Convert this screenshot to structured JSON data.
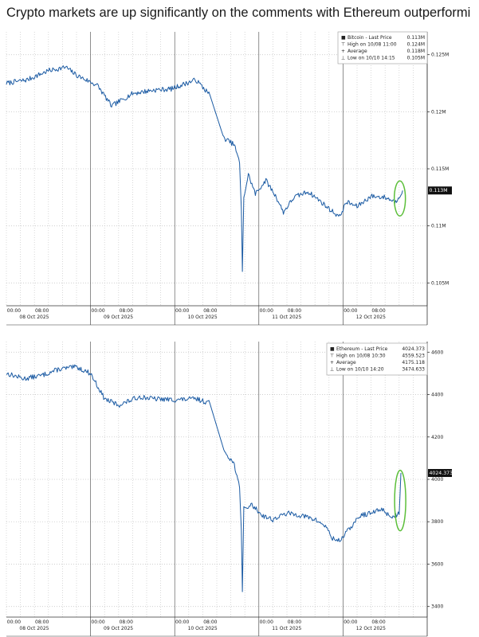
{
  "headline": "Crypto markets are up significantly on the comments with Ethereum outperformi",
  "colors": {
    "line": "#1a5aa3",
    "grid": "#c8c8c8",
    "highlight": "#5cbf3a",
    "axis": "#333333"
  },
  "chart_data": [
    {
      "type": "line",
      "series": [
        {
          "name": "Bitcoin"
        }
      ],
      "ylim": [
        0.103,
        0.127
      ],
      "y_ticks": [
        0.105,
        0.11,
        0.115,
        0.12,
        0.125
      ],
      "y_tick_labels": [
        "0.105M",
        "0.11M",
        "0.115M",
        "0.12M",
        "0.125M"
      ],
      "x_ticks": [
        "00:00",
        "08:00",
        "00:00",
        "08:00",
        "00:00",
        "08:00",
        "00:00",
        "08:00",
        "00:00",
        "08:00"
      ],
      "x_day_labels": [
        "08 Oct 2025",
        "09 Oct 2025",
        "10 Oct 2025",
        "11 Oct 2025",
        "12 Oct 2025"
      ],
      "last_price_label": "0.113M",
      "legend": [
        {
          "marker": "■",
          "text": "Bitcoin - Last Price",
          "value": "0.113M"
        },
        {
          "marker": "⊤",
          "text": "High on 10/08 11:00",
          "value": "0.124M"
        },
        {
          "marker": "+",
          "text": "Average",
          "value": "0.118M"
        },
        {
          "marker": "⊥",
          "text": "Low on 10/10 14:15",
          "value": "0.105M"
        }
      ],
      "anchors": [
        [
          0,
          0.1225
        ],
        [
          6,
          0.1228
        ],
        [
          12,
          0.1236
        ],
        [
          17,
          0.1239
        ],
        [
          20,
          0.1232
        ],
        [
          26,
          0.1223
        ],
        [
          30,
          0.1205
        ],
        [
          36,
          0.1216
        ],
        [
          42,
          0.1219
        ],
        [
          47,
          0.122
        ],
        [
          54,
          0.1228
        ],
        [
          58,
          0.1215
        ],
        [
          62,
          0.1177
        ],
        [
          65,
          0.1171
        ],
        [
          66.5,
          0.1155
        ],
        [
          67,
          0.1115
        ],
        [
          67.3,
          0.106
        ],
        [
          67.7,
          0.1125
        ],
        [
          69,
          0.1145
        ],
        [
          71,
          0.1128
        ],
        [
          74,
          0.114
        ],
        [
          77,
          0.1125
        ],
        [
          79,
          0.1112
        ],
        [
          82,
          0.1125
        ],
        [
          86,
          0.113
        ],
        [
          89,
          0.1123
        ],
        [
          92,
          0.1115
        ],
        [
          95,
          0.1108
        ],
        [
          97,
          0.1121
        ],
        [
          100,
          0.1117
        ],
        [
          104,
          0.1126
        ],
        [
          108,
          0.1125
        ],
        [
          111,
          0.1121
        ],
        [
          113,
          0.1131
        ]
      ],
      "highlight": {
        "x": 112.2,
        "y": 0.1124
      }
    },
    {
      "type": "line",
      "series": [
        {
          "name": "Ethereum"
        }
      ],
      "ylim": [
        3350,
        4650
      ],
      "y_ticks": [
        3400,
        3600,
        3800,
        4000,
        4200,
        4400,
        4600
      ],
      "y_tick_labels": [
        "3400",
        "3600",
        "3800",
        "4000",
        "4200",
        "4400",
        "4600"
      ],
      "x_ticks": [
        "00:00",
        "08:00",
        "00:00",
        "08:00",
        "00:00",
        "08:00",
        "00:00",
        "08:00",
        "00:00",
        "08:00"
      ],
      "x_day_labels": [
        "08 Oct 2025",
        "09 Oct 2025",
        "10 Oct 2025",
        "11 Oct 2025",
        "12 Oct 2025"
      ],
      "last_price_label": "4024.373",
      "legend": [
        {
          "marker": "■",
          "text": "Ethereum - Last Price",
          "value": "4024.373"
        },
        {
          "marker": "⊤",
          "text": "High on 10/08 10:30",
          "value": "4559.523"
        },
        {
          "marker": "+",
          "text": "Average",
          "value": "4175.118"
        },
        {
          "marker": "⊥",
          "text": "Low on 10/10 14:20",
          "value": "3474.633"
        }
      ],
      "anchors": [
        [
          0,
          4500
        ],
        [
          5,
          4475
        ],
        [
          10,
          4490
        ],
        [
          15,
          4520
        ],
        [
          20,
          4530
        ],
        [
          24,
          4500
        ],
        [
          28,
          4380
        ],
        [
          32,
          4350
        ],
        [
          38,
          4390
        ],
        [
          42,
          4380
        ],
        [
          48,
          4375
        ],
        [
          54,
          4380
        ],
        [
          58,
          4360
        ],
        [
          62,
          4140
        ],
        [
          65,
          4070
        ],
        [
          66.5,
          3960
        ],
        [
          67,
          3760
        ],
        [
          67.3,
          3470
        ],
        [
          67.7,
          3860
        ],
        [
          70,
          3880
        ],
        [
          73,
          3830
        ],
        [
          76,
          3810
        ],
        [
          80,
          3840
        ],
        [
          84,
          3830
        ],
        [
          88,
          3810
        ],
        [
          91,
          3780
        ],
        [
          93,
          3720
        ],
        [
          95,
          3710
        ],
        [
          98,
          3770
        ],
        [
          101,
          3830
        ],
        [
          104,
          3840
        ],
        [
          107,
          3860
        ],
        [
          110,
          3820
        ],
        [
          112,
          3840
        ],
        [
          112.5,
          4030
        ]
      ],
      "highlight": {
        "x": 112.3,
        "y": 3900
      }
    }
  ]
}
